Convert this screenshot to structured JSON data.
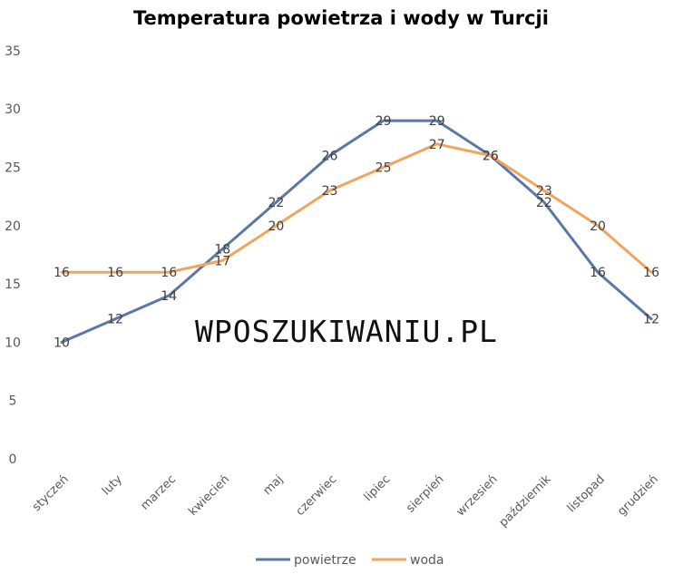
{
  "chart_data": {
    "type": "line",
    "title": "Temperatura powietrza i wody  w Turcji",
    "categories": [
      "styczeń",
      "luty",
      "marzec",
      "kwiecień",
      "maj",
      "czerwiec",
      "lipiec",
      "sierpień",
      "wrzesień",
      "październik",
      "listopad",
      "grudzień"
    ],
    "series": [
      {
        "name": "powietrze",
        "color": "#5b77a8",
        "values": [
          10,
          12,
          14,
          18,
          22,
          26,
          29,
          29,
          26,
          22,
          16,
          12
        ]
      },
      {
        "name": "woda",
        "color": "#f0a55c",
        "values": [
          16,
          16,
          16,
          17,
          20,
          23,
          25,
          27,
          26,
          23,
          20,
          16
        ]
      }
    ],
    "ylim": [
      0,
      35
    ],
    "yticks": [
      0,
      5,
      10,
      15,
      20,
      25,
      30,
      35
    ],
    "grid": false,
    "legend": "bottom",
    "data_labels": true,
    "xlabel": "",
    "ylabel": ""
  },
  "watermark": "WPOSZUKIWANIU.PL"
}
